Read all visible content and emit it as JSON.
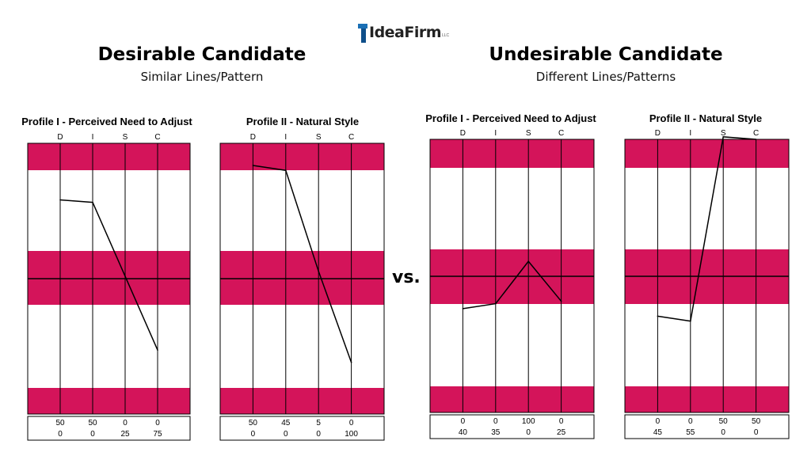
{
  "logo": {
    "text": "IdeaFirm",
    "suffix": "LLC"
  },
  "left_group": {
    "title": "Desirable Candidate",
    "subtitle": "Similar Lines/Pattern"
  },
  "right_group": {
    "title": "Undesirable Candidate",
    "subtitle": "Different Lines/Patterns"
  },
  "vs_label": "vs.",
  "colors": {
    "band": "#d4145a",
    "line": "#000000",
    "grid": "#000000"
  },
  "chart_data": [
    {
      "type": "line",
      "title": "Profile I - Perceived Need to Adjust",
      "categories": [
        "D",
        "I",
        "S",
        "C"
      ],
      "values": [
        3.2,
        3.1,
        0.1,
        -2.9
      ],
      "ylim": [
        -5.5,
        5.5
      ],
      "grid": true,
      "table": {
        "row1": [
          "50",
          "50",
          "0",
          "0"
        ],
        "row2": [
          "0",
          "0",
          "25",
          "75"
        ]
      }
    },
    {
      "type": "line",
      "title": "Profile II - Natural Style",
      "categories": [
        "D",
        "I",
        "S",
        "C"
      ],
      "values": [
        4.6,
        4.4,
        0.3,
        -3.4
      ],
      "ylim": [
        -5.5,
        5.5
      ],
      "grid": true,
      "table": {
        "row1": [
          "50",
          "45",
          "5",
          "0"
        ],
        "row2": [
          "0",
          "0",
          "0",
          "100"
        ]
      }
    },
    {
      "type": "line",
      "title": "Profile I - Perceived Need to Adjust",
      "categories": [
        "D",
        "I",
        "S",
        "C"
      ],
      "values": [
        -1.3,
        -1.1,
        0.6,
        -1.0
      ],
      "ylim": [
        -5.5,
        5.5
      ],
      "grid": true,
      "table": {
        "row1": [
          "0",
          "0",
          "100",
          "0"
        ],
        "row2": [
          "40",
          "35",
          "0",
          "25"
        ]
      }
    },
    {
      "type": "line",
      "title": "Profile II - Natural Style",
      "categories": [
        "D",
        "I",
        "S",
        "C"
      ],
      "values": [
        -1.6,
        -1.8,
        5.6,
        5.5
      ],
      "ylim": [
        -5.5,
        5.5
      ],
      "grid": true,
      "table": {
        "row1": [
          "0",
          "0",
          "50",
          "50"
        ],
        "row2": [
          "45",
          "55",
          "0",
          "0"
        ]
      }
    }
  ]
}
